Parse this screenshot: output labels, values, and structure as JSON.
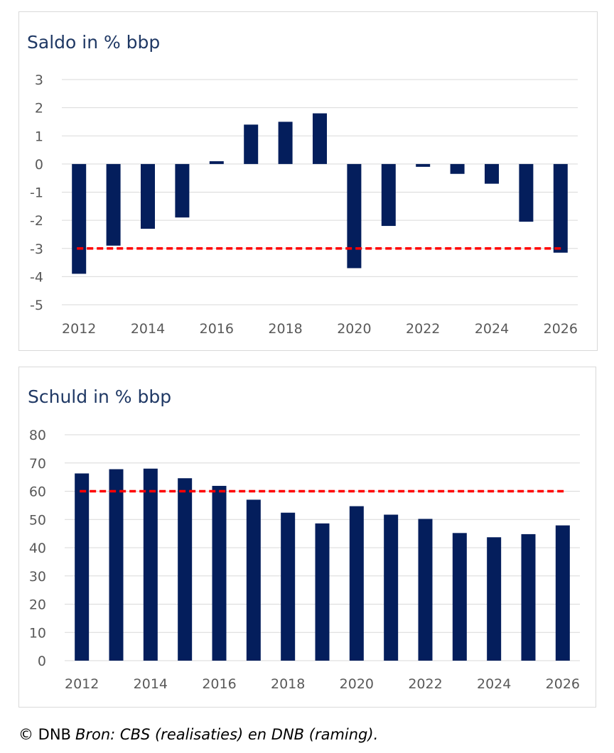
{
  "colors": {
    "bar": "#041e5c",
    "threshold": "#ff0000",
    "grid": "#d9d9d9",
    "title": "#1f3864",
    "tick": "#595959"
  },
  "chart_data": [
    {
      "type": "bar",
      "title": "Saldo in % bbp",
      "categories": [
        "2012",
        "2013",
        "2014",
        "2015",
        "2016",
        "2017",
        "2018",
        "2019",
        "2020",
        "2021",
        "2022",
        "2023",
        "2024",
        "2025",
        "2026"
      ],
      "x_tick_labels": [
        "2012",
        "2014",
        "2016",
        "2018",
        "2020",
        "2022",
        "2024",
        "2026"
      ],
      "values": [
        -3.9,
        -2.9,
        -2.3,
        -1.9,
        0.1,
        1.4,
        1.5,
        1.8,
        -3.7,
        -2.2,
        -0.1,
        -0.35,
        -0.7,
        -2.05,
        -3.15
      ],
      "ylim": [
        -5,
        3
      ],
      "y_ticks": [
        3,
        2,
        1,
        0,
        -1,
        -2,
        -3,
        -4,
        -5
      ],
      "reference_line": {
        "value": -3,
        "style": "dashed"
      },
      "grid": true,
      "xlabel": "",
      "ylabel": ""
    },
    {
      "type": "bar",
      "title": "Schuld in % bbp",
      "categories": [
        "2012",
        "2013",
        "2014",
        "2015",
        "2016",
        "2017",
        "2018",
        "2019",
        "2020",
        "2021",
        "2022",
        "2023",
        "2024",
        "2025",
        "2026"
      ],
      "x_tick_labels": [
        "2012",
        "2014",
        "2016",
        "2018",
        "2020",
        "2022",
        "2024",
        "2026"
      ],
      "values": [
        66.3,
        67.8,
        68.0,
        64.6,
        61.9,
        57.0,
        52.4,
        48.6,
        54.7,
        51.7,
        50.2,
        45.2,
        43.7,
        44.8,
        47.9
      ],
      "ylim": [
        0,
        80
      ],
      "y_ticks": [
        80,
        70,
        60,
        50,
        40,
        30,
        20,
        10,
        0
      ],
      "reference_line": {
        "value": 60,
        "style": "dashed"
      },
      "grid": true,
      "xlabel": "",
      "ylabel": ""
    }
  ],
  "footer": {
    "copyright": "© DNB",
    "source": "Bron: CBS (realisaties) en DNB (raming)."
  }
}
